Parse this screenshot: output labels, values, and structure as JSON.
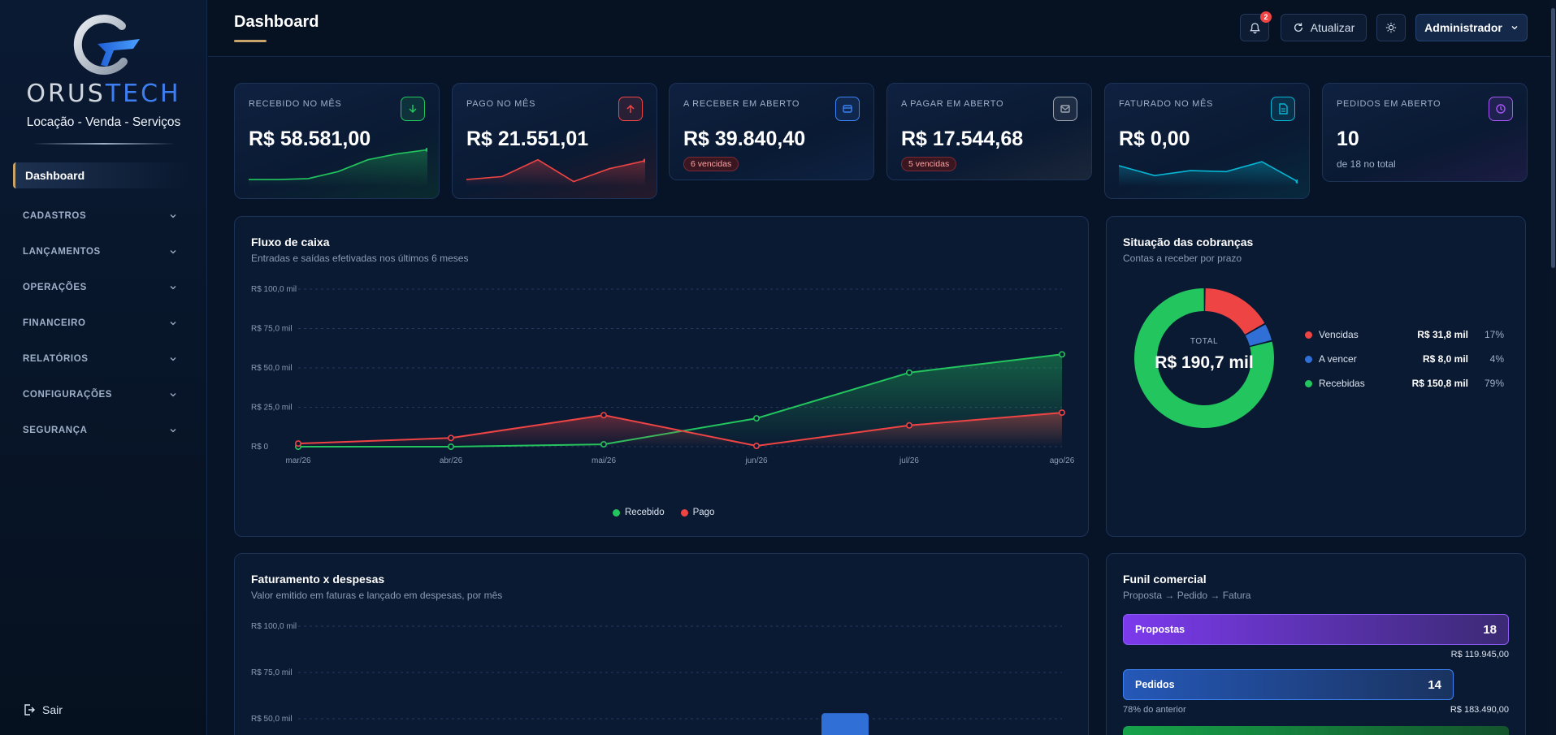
{
  "brand": {
    "name_a": "ORUS",
    "name_b": "TECH",
    "tagline": "Locação - Venda - Serviços"
  },
  "sidebar": {
    "items": [
      {
        "label": "Dashboard",
        "active": true
      },
      {
        "label": "CADASTROS"
      },
      {
        "label": "LANÇAMENTOS"
      },
      {
        "label": "OPERAÇÕES"
      },
      {
        "label": "FINANCEIRO"
      },
      {
        "label": "RELATÓRIOS"
      },
      {
        "label": "CONFIGURAÇÕES"
      },
      {
        "label": "SEGURANÇA"
      }
    ],
    "logout": "Sair"
  },
  "header": {
    "title": "Dashboard",
    "notifications": "2",
    "refresh": "Atualizar",
    "user": "Administrador"
  },
  "kpis": [
    {
      "label": "RECEBIDO NO MÊS",
      "value": "R$ 58.581,00",
      "icon": "arrow-down-icon",
      "color": "#22c55e",
      "spark": [
        2,
        2,
        2.5,
        6,
        12,
        15,
        17
      ]
    },
    {
      "label": "PAGO NO MÊS",
      "value": "R$ 21.551,01",
      "icon": "arrow-up-icon",
      "color": "#ef4444",
      "spark": [
        2,
        3.5,
        12,
        1,
        7.5,
        11.5
      ]
    },
    {
      "label": "A RECEBER EM ABERTO",
      "value": "R$ 39.840,40",
      "icon": "wallet-icon",
      "color": "#3b82f6",
      "pill": "6 vencidas"
    },
    {
      "label": "A PAGAR EM ABERTO",
      "value": "R$ 17.544,68",
      "icon": "mail-icon",
      "color": "#9ca3af",
      "pill": "5 vencidas"
    },
    {
      "label": "FATURADO NO MÊS",
      "value": "R$ 0,00",
      "icon": "document-icon",
      "color": "#06b6d4",
      "spark": [
        9,
        4,
        6.5,
        6,
        11,
        1
      ]
    },
    {
      "label": "PEDIDOS EM ABERTO",
      "value": "10",
      "icon": "clock-icon",
      "color": "#a855f7",
      "sub": "de 18 no total"
    }
  ],
  "cashflow": {
    "title": "Fluxo de caixa",
    "subtitle": "Entradas e saídas efetivadas nos últimos 6 meses",
    "legend": [
      "Recebido",
      "Pago"
    ],
    "chart_data": {
      "type": "line",
      "x": [
        "mar/26",
        "abr/26",
        "mai/26",
        "jun/26",
        "jul/26",
        "ago/26"
      ],
      "y_ticks": [
        "R$ 0",
        "R$ 25,0 mil",
        "R$ 50,0 mil",
        "R$ 75,0 mil",
        "R$ 100,0 mil"
      ],
      "ylim": [
        0,
        100
      ],
      "series": [
        {
          "name": "Recebido",
          "color": "#22c55e",
          "values": [
            0,
            0,
            1.5,
            18,
            47,
            58.6
          ]
        },
        {
          "name": "Pago",
          "color": "#ef4444",
          "values": [
            2,
            5.5,
            20,
            0.5,
            13.5,
            21.6
          ]
        }
      ]
    }
  },
  "billing_status": {
    "title": "Situação das cobranças",
    "subtitle": "Contas a receber por prazo",
    "total_label": "TOTAL",
    "total_value": "R$ 190,7 mil",
    "chart_data": {
      "type": "pie",
      "items": [
        {
          "name": "Vencidas",
          "value": "R$ 31,8 mil",
          "amount": 31.8,
          "pct": "17%",
          "color": "#ef4444"
        },
        {
          "name": "A vencer",
          "value": "R$ 8,0 mil",
          "amount": 8.0,
          "pct": "4%",
          "color": "#2f6fd6"
        },
        {
          "name": "Recebidas",
          "value": "R$ 150,8 mil",
          "amount": 150.8,
          "pct": "79%",
          "color": "#22c55e"
        }
      ]
    }
  },
  "revenue_expenses": {
    "title": "Faturamento x despesas",
    "subtitle": "Valor emitido em faturas e lançado em despesas, por mês",
    "chart_data": {
      "type": "bar",
      "y_ticks": [
        "R$ 100,0 mil",
        "R$ 75,0 mil",
        "R$ 50,0 mil"
      ],
      "ylim": [
        0,
        100
      ],
      "visible_bar_top_value": 53
    }
  },
  "funnel": {
    "title": "Funil comercial",
    "subtitle": "Proposta → Pedido → Fatura",
    "stages": [
      {
        "name": "Propostas",
        "count": "18",
        "amount": "R$ 119.945,00",
        "note": "",
        "fraction": 1.0
      },
      {
        "name": "Pedidos",
        "count": "14",
        "amount": "R$ 183.490,00",
        "note": "78% do anterior",
        "fraction": 0.857
      }
    ]
  }
}
